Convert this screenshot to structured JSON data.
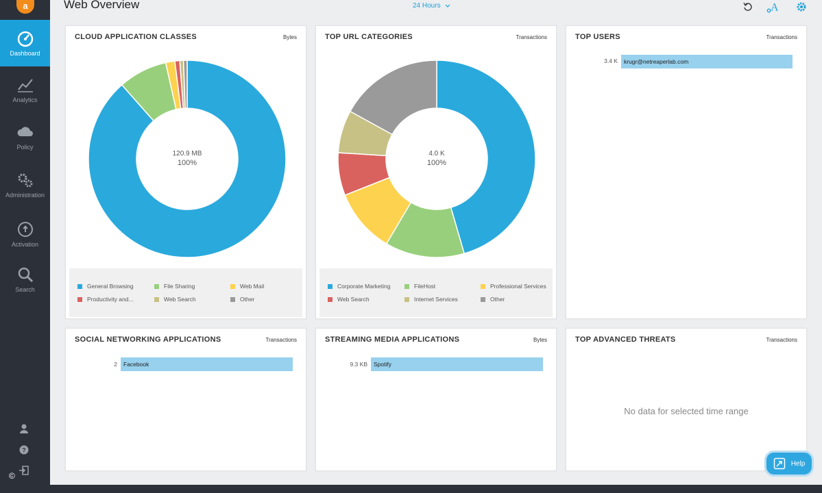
{
  "header": {
    "title": "Web Overview",
    "time_range": "24 Hours"
  },
  "sidebar": {
    "items": [
      {
        "label": "Dashboard",
        "icon": "dashboard-icon"
      },
      {
        "label": "Analytics",
        "icon": "analytics-icon"
      },
      {
        "label": "Policy",
        "icon": "cloud-icon"
      },
      {
        "label": "Administration",
        "icon": "gears-icon"
      },
      {
        "label": "Activation",
        "icon": "upload-icon"
      },
      {
        "label": "Search",
        "icon": "search-icon"
      }
    ],
    "bottom_icons": [
      "user-icon",
      "help-icon",
      "logout-icon"
    ]
  },
  "cards": {
    "cloud_apps": {
      "title": "CLOUD APPLICATION CLASSES",
      "unit": "Bytes",
      "center_value": "120.9 MB",
      "center_pct": "100%",
      "legend": [
        "General Browsing",
        "File Sharing",
        "Web Mail",
        "Productivity and...",
        "Web Search",
        "Other"
      ]
    },
    "url_categories": {
      "title": "TOP URL CATEGORIES",
      "unit": "Transactions",
      "center_value": "4.0 K",
      "center_pct": "100%",
      "legend": [
        "Corporate Marketing",
        "FileHost",
        "Professional Services",
        "Web Search",
        "Internet Services",
        "Other"
      ]
    },
    "top_users": {
      "title": "TOP USERS",
      "unit": "Transactions",
      "rows": [
        {
          "value": "3.4 K",
          "label": "krugr@netreaperlab.com"
        }
      ]
    },
    "social": {
      "title": "SOCIAL NETWORKING APPLICATIONS",
      "unit": "Transactions",
      "rows": [
        {
          "value": "2",
          "label": "Facebook"
        }
      ]
    },
    "streaming": {
      "title": "STREAMING MEDIA APPLICATIONS",
      "unit": "Bytes",
      "rows": [
        {
          "value": "9.3 KB",
          "label": "Spotify"
        }
      ]
    },
    "threats": {
      "title": "TOP ADVANCED THREATS",
      "unit": "Transactions",
      "empty_message": "No data for selected time range"
    }
  },
  "help": {
    "label": "Help"
  },
  "copyright": "©",
  "colors": {
    "accent": "#1ca0d9",
    "sidebar": "#2c3039",
    "bar": "#97d1ee",
    "blue": "#2aa9dc",
    "green": "#98cf7c",
    "yellow": "#fdd24e",
    "red": "#d9625f",
    "olive": "#c7c185",
    "gray": "#9a9a9a"
  },
  "chart_data": [
    {
      "type": "pie",
      "categories": [
        "General Browsing",
        "File Sharing",
        "Web Mail",
        "Productivity and...",
        "Web Search",
        "Other"
      ],
      "values": [
        88.5,
        8.0,
        1.5,
        0.8,
        0.6,
        0.6
      ],
      "colors": [
        "#2aa9dc",
        "#98cf7c",
        "#fdd24e",
        "#d9625f",
        "#c7c185",
        "#9a9a9a"
      ]
    },
    {
      "type": "pie",
      "categories": [
        "Corporate Marketing",
        "FileHost",
        "Professional Services",
        "Web Search",
        "Internet Services",
        "Other"
      ],
      "values": [
        45.5,
        13.0,
        10.5,
        7.0,
        7.0,
        17.0
      ],
      "colors": [
        "#2aa9dc",
        "#98cf7c",
        "#fdd24e",
        "#d9625f",
        "#c7c185",
        "#9a9a9a"
      ]
    }
  ]
}
